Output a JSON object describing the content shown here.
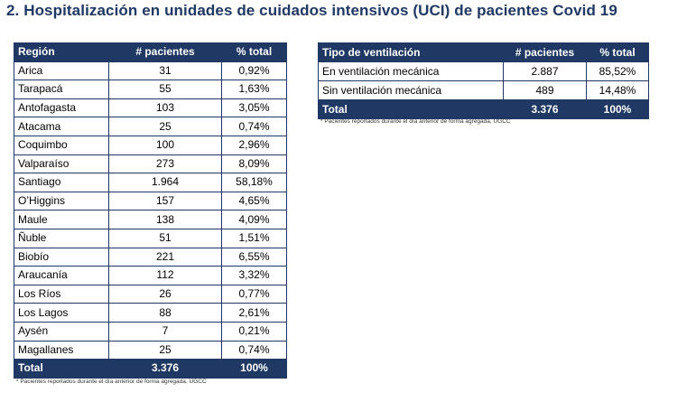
{
  "title": "2. Hospitalización en unidades de cuidados intensivos (UCI) de pacientes Covid 19",
  "regions_table": {
    "headers": [
      "Región",
      "# pacientes",
      "% total"
    ],
    "rows": [
      [
        "Arica",
        "31",
        "0,92%"
      ],
      [
        "Tarapacá",
        "55",
        "1,63%"
      ],
      [
        "Antofagasta",
        "103",
        "3,05%"
      ],
      [
        "Atacama",
        "25",
        "0,74%"
      ],
      [
        "Coquimbo",
        "100",
        "2,96%"
      ],
      [
        "Valparaíso",
        "273",
        "8,09%"
      ],
      [
        "Santiago",
        "1.964",
        "58,18%"
      ],
      [
        "O’Higgins",
        "157",
        "4,65%"
      ],
      [
        "Maule",
        "138",
        "4,09%"
      ],
      [
        "Ñuble",
        "51",
        "1,51%"
      ],
      [
        "Biobío",
        "221",
        "6,55%"
      ],
      [
        "Araucanía",
        "112",
        "3,32%"
      ],
      [
        "Los Ríos",
        "26",
        "0,77%"
      ],
      [
        "Los Lagos",
        "88",
        "2,61%"
      ],
      [
        "Aysén",
        "7",
        "0,21%"
      ],
      [
        "Magallanes",
        "25",
        "0,74%"
      ]
    ],
    "total": [
      "Total",
      "3.376",
      "100%"
    ],
    "note": "* Pacientes reportados durante el día anterior de forma agregada, UGCC"
  },
  "ventilation_table": {
    "headers": [
      "Tipo de ventilación",
      "# pacientes",
      "% total"
    ],
    "rows": [
      [
        "En ventilación mecánica",
        "2.887",
        "85,52%"
      ],
      [
        "Sin ventilación mecánica",
        "489",
        "14,48%"
      ]
    ],
    "total": [
      "Total",
      "3.376",
      "100%"
    ],
    "note": "* Pacientes reportados durante el día anterior de forma agregada, UGCC"
  },
  "colors": {
    "header_bg": "#1f3864",
    "title": "#1f3864"
  }
}
